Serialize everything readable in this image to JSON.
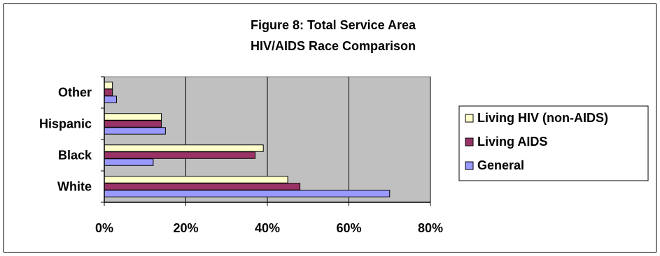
{
  "chart_data": {
    "type": "bar",
    "orientation": "horizontal",
    "title": "Figure 8: Total Service Area",
    "subtitle": "HIV/AIDS Race Comparison",
    "categories": [
      "White",
      "Black",
      "Hispanic",
      "Other"
    ],
    "series": [
      {
        "name": "Living HIV (non-AIDS)",
        "color": "#FFFFCC",
        "values": [
          45,
          39,
          14,
          2
        ]
      },
      {
        "name": "Living AIDS",
        "color": "#993366",
        "values": [
          48,
          37,
          14,
          2
        ]
      },
      {
        "name": "General",
        "color": "#9999FF",
        "values": [
          70,
          12,
          15,
          3
        ]
      }
    ],
    "xlim": [
      0,
      80
    ],
    "xticks": [
      0,
      20,
      40,
      60,
      80
    ],
    "xtick_labels": [
      "0%",
      "20%",
      "40%",
      "60%",
      "80%"
    ],
    "xlabel": "",
    "ylabel": "",
    "grid": "vertical",
    "plot_background": "#C0C0C0",
    "legend_position": "right"
  }
}
